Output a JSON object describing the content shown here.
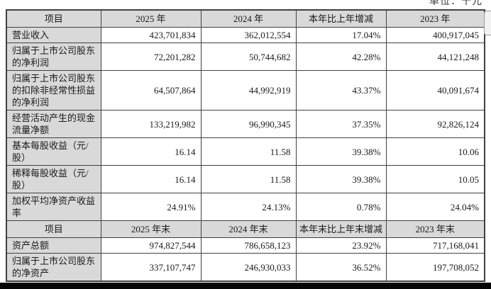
{
  "unit_note": "单位：千元",
  "colors": {
    "header_bg": "#d9d9d9",
    "label_bg": "#d9d9d9",
    "border": "#414141",
    "bottom_bar": "#060606"
  },
  "table": {
    "sections": [
      {
        "header": [
          "项目",
          "2025 年",
          "2024 年",
          "本年比上年增减",
          "2023 年"
        ],
        "rows": [
          {
            "label": "营业收入",
            "values": [
              "423,701,834",
              "362,012,554",
              "17.04%",
              "400,917,045"
            ]
          },
          {
            "label": "归属于上市公司股东的净利润",
            "values": [
              "72,201,282",
              "50,744,682",
              "42.28%",
              "44,121,248"
            ]
          },
          {
            "label": "归属于上市公司股东的扣除非经常性损益的净利润",
            "values": [
              "64,507,864",
              "44,992,919",
              "43.37%",
              "40,091,674"
            ]
          },
          {
            "label": "经营活动产生的现金流量净额",
            "values": [
              "133,219,982",
              "96,990,345",
              "37.35%",
              "92,826,124"
            ]
          },
          {
            "label": "基本每股收益（元/股）",
            "values": [
              "16.14",
              "11.58",
              "39.38%",
              "10.06"
            ]
          },
          {
            "label": "稀释每股收益（元/股）",
            "values": [
              "16.14",
              "11.58",
              "39.38%",
              "10.05"
            ]
          },
          {
            "label": "加权平均净资产收益率",
            "values": [
              "24.91%",
              "24.13%",
              "0.78%",
              "24.04%"
            ]
          }
        ]
      },
      {
        "header": [
          "项目",
          "2025 年末",
          "2024 年末",
          "本年末比上年末增减",
          "2023 年末"
        ],
        "rows": [
          {
            "label": "资产总额",
            "values": [
              "974,827,544",
              "786,658,123",
              "23.92%",
              "717,168,041"
            ]
          },
          {
            "label": "归属于上市公司股东的净资产",
            "values": [
              "337,107,747",
              "246,930,033",
              "36.52%",
              "197,708,052"
            ]
          }
        ]
      }
    ]
  }
}
